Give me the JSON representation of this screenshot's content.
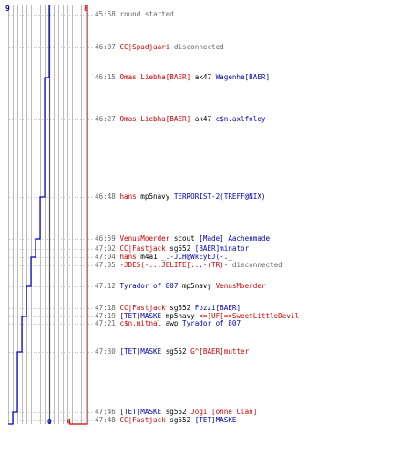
{
  "colors": {
    "team1": "#0000cc",
    "team2": "#cc0000",
    "grid": "#999999",
    "text": "#666666"
  },
  "chart_data": {
    "type": "line",
    "series": [
      {
        "start": 9,
        "end": 0,
        "counts": [
          9,
          9,
          9,
          8,
          8,
          7,
          6,
          6,
          5,
          5,
          4,
          4,
          3,
          3,
          2,
          1,
          1,
          0,
          0
        ]
      },
      {
        "start": 8,
        "end": 4,
        "counts": [
          8,
          8,
          8,
          8,
          8,
          8,
          8,
          8,
          8,
          8,
          8,
          8,
          8,
          8,
          8,
          8,
          8,
          6,
          4
        ]
      }
    ]
  },
  "events": [
    {
      "time": "45:58",
      "parts": [
        {
          "t": "round started",
          "c": "msg"
        }
      ]
    },
    {
      "time": "46:07",
      "parts": [
        {
          "t": "CC|Spadjaari",
          "c": "red"
        },
        {
          "t": " disconnected",
          "c": "msg"
        }
      ]
    },
    {
      "time": "46:15",
      "parts": [
        {
          "t": "Omas Liebha[BAER]",
          "c": "red"
        },
        {
          "t": " ak47 ",
          "c": "blk"
        },
        {
          "t": "Wagenhe[BAER]",
          "c": "blue"
        }
      ]
    },
    {
      "time": "46:27",
      "parts": [
        {
          "t": "Omas Liebha[BAER]",
          "c": "red"
        },
        {
          "t": " ak47 ",
          "c": "blk"
        },
        {
          "t": "c$n.axlfoley",
          "c": "blue"
        }
      ]
    },
    {
      "time": "46:48",
      "parts": [
        {
          "t": "hans",
          "c": "red"
        },
        {
          "t": " mp5navy ",
          "c": "blk"
        },
        {
          "t": "TERRORIST-2(TREFF@NIX)",
          "c": "blue"
        }
      ]
    },
    {
      "time": "46:59",
      "parts": [
        {
          "t": "VenusMoerder",
          "c": "red"
        },
        {
          "t": " scout ",
          "c": "blk"
        },
        {
          "t": "[Made] Aachenmade",
          "c": "blue"
        }
      ]
    },
    {
      "time": "47:02",
      "parts": [
        {
          "t": "CC|Fastjack",
          "c": "red"
        },
        {
          "t": " sg552 ",
          "c": "blk"
        },
        {
          "t": "[BAER]minator",
          "c": "blue"
        }
      ]
    },
    {
      "time": "47:04",
      "parts": [
        {
          "t": "hans",
          "c": "red"
        },
        {
          "t": " m4a1 ",
          "c": "blk"
        },
        {
          "t": "_.-JCH@WkEyEJ(-._",
          "c": "blue"
        }
      ]
    },
    {
      "time": "47:05",
      "parts": [
        {
          "t": "-JDES(-.::JELITE[::.-(TR)-",
          "c": "red"
        },
        {
          "t": " disconnected",
          "c": "msg"
        }
      ]
    },
    {
      "time": "47:12",
      "parts": [
        {
          "t": "Tyrador of 807",
          "c": "blue"
        },
        {
          "t": " mp5navy ",
          "c": "blk"
        },
        {
          "t": "VenusMoerder",
          "c": "red"
        }
      ]
    },
    {
      "time": "47:18",
      "parts": [
        {
          "t": "CC|Fastjack",
          "c": "red"
        },
        {
          "t": " sg552 ",
          "c": "blk"
        },
        {
          "t": "Fozzi[BAER]",
          "c": "blue"
        }
      ]
    },
    {
      "time": "47:19",
      "parts": [
        {
          "t": "[TET]MASKE",
          "c": "blue"
        },
        {
          "t": " mp5navy ",
          "c": "blk"
        },
        {
          "t": "<=]UF[=>SweetLittleDevil",
          "c": "red"
        }
      ]
    },
    {
      "time": "47:21",
      "parts": [
        {
          "t": "c$n.mitnal",
          "c": "red"
        },
        {
          "t": " awp ",
          "c": "blk"
        },
        {
          "t": "Tyrador of 807",
          "c": "blue"
        }
      ]
    },
    {
      "time": "47:30",
      "parts": [
        {
          "t": "[TET]MASKE",
          "c": "blue"
        },
        {
          "t": " sg552 ",
          "c": "blk"
        },
        {
          "t": "G^[BAER]mutter",
          "c": "red"
        }
      ]
    },
    {
      "time": "47:46",
      "parts": [
        {
          "t": "[TET]MASKE",
          "c": "blue"
        },
        {
          "t": " sg552 ",
          "c": "blk"
        },
        {
          "t": "Jogi [ohne Clan]",
          "c": "red"
        }
      ]
    },
    {
      "time": "47:48",
      "parts": [
        {
          "t": "CC|Fastjack",
          "c": "red"
        },
        {
          "t": " sg552 ",
          "c": "blk"
        },
        {
          "t": "[TET]MASKE",
          "c": "blue"
        }
      ]
    }
  ]
}
